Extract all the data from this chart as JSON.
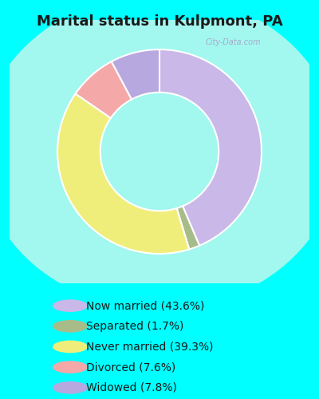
{
  "title": "Marital status in Kulpmont, PA",
  "title_fontsize": 13,
  "outer_bg": "#00FFFF",
  "chart_bg_color": "#c8e6c9",
  "slices": [
    {
      "label": "Now married (43.6%)",
      "value": 43.6,
      "color": "#c9b8e8"
    },
    {
      "label": "Separated (1.7%)",
      "value": 1.7,
      "color": "#a8bc8a"
    },
    {
      "label": "Never married (39.3%)",
      "value": 39.3,
      "color": "#f0ee7a"
    },
    {
      "label": "Divorced (7.6%)",
      "value": 7.6,
      "color": "#f5a8a8"
    },
    {
      "label": "Widowed (7.8%)",
      "value": 7.8,
      "color": "#b8a8e0"
    }
  ],
  "donut_width": 0.42,
  "figsize": [
    4.0,
    5.0
  ],
  "dpi": 100,
  "legend_fontsize": 10,
  "watermark": "City-Data.com",
  "watermark_color": "#aaaacc"
}
